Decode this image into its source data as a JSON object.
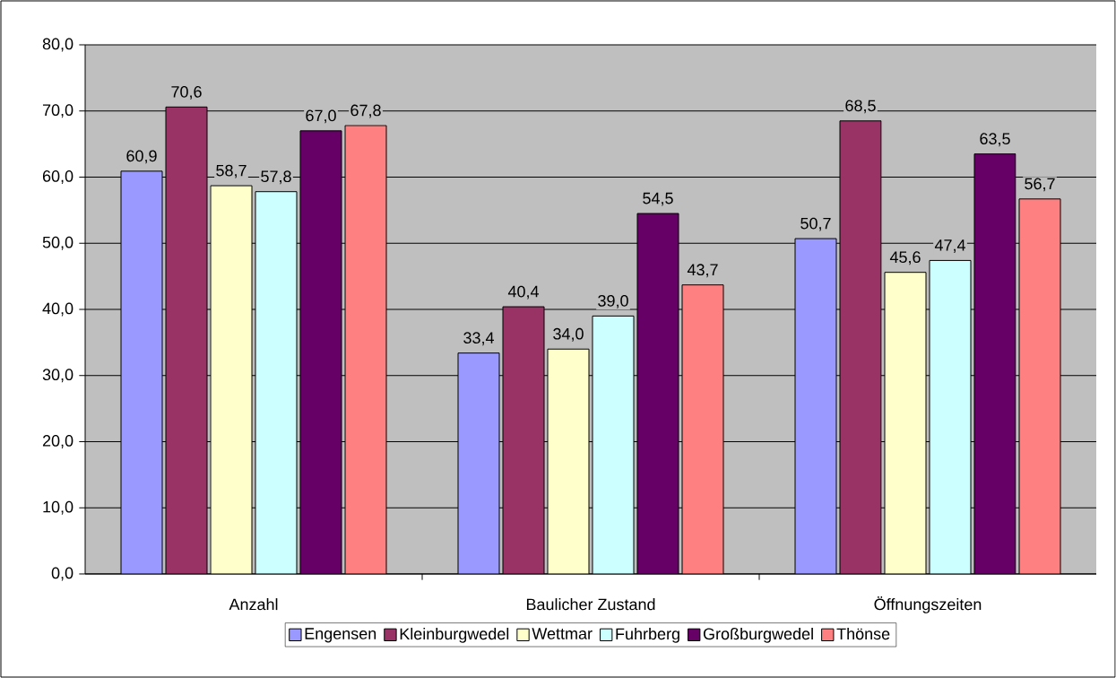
{
  "chart_data": {
    "type": "bar",
    "categories": [
      "Anzahl",
      "Baulicher Zustand",
      "Öffnungszeiten"
    ],
    "series": [
      {
        "name": "Engensen",
        "color": "#9999ff",
        "values": [
          60.9,
          33.4,
          50.7
        ],
        "value_labels": [
          "60,9",
          "33,4",
          "50,7"
        ]
      },
      {
        "name": "Kleinburgwedel",
        "color": "#993366",
        "values": [
          70.6,
          40.4,
          68.5
        ],
        "value_labels": [
          "70,6",
          "40,4",
          "68,5"
        ]
      },
      {
        "name": "Wettmar",
        "color": "#ffffcc",
        "values": [
          58.7,
          34.0,
          45.6
        ],
        "value_labels": [
          "58,7",
          "34,0",
          "45,6"
        ]
      },
      {
        "name": "Fuhrberg",
        "color": "#ccffff",
        "values": [
          57.8,
          39.0,
          47.4
        ],
        "value_labels": [
          "57,8",
          "39,0",
          "47,4"
        ]
      },
      {
        "name": "Großburgwedel",
        "color": "#660066",
        "values": [
          67.0,
          54.5,
          63.5
        ],
        "value_labels": [
          "67,0",
          "54,5",
          "63,5"
        ]
      },
      {
        "name": "Thönse",
        "color": "#ff8080",
        "values": [
          67.8,
          43.7,
          56.7
        ],
        "value_labels": [
          "67,8",
          "43,7",
          "56,7"
        ]
      }
    ],
    "ylim": [
      0,
      80
    ],
    "yticks": [
      {
        "value": 0,
        "label": "0,0"
      },
      {
        "value": 10,
        "label": "10,0"
      },
      {
        "value": 20,
        "label": "20,0"
      },
      {
        "value": 30,
        "label": "30,0"
      },
      {
        "value": 40,
        "label": "40,0"
      },
      {
        "value": 50,
        "label": "50,0"
      },
      {
        "value": 60,
        "label": "60,0"
      },
      {
        "value": 70,
        "label": "70,0"
      },
      {
        "value": 80,
        "label": "80,0"
      }
    ],
    "grid": "y",
    "legend": "bottom"
  }
}
